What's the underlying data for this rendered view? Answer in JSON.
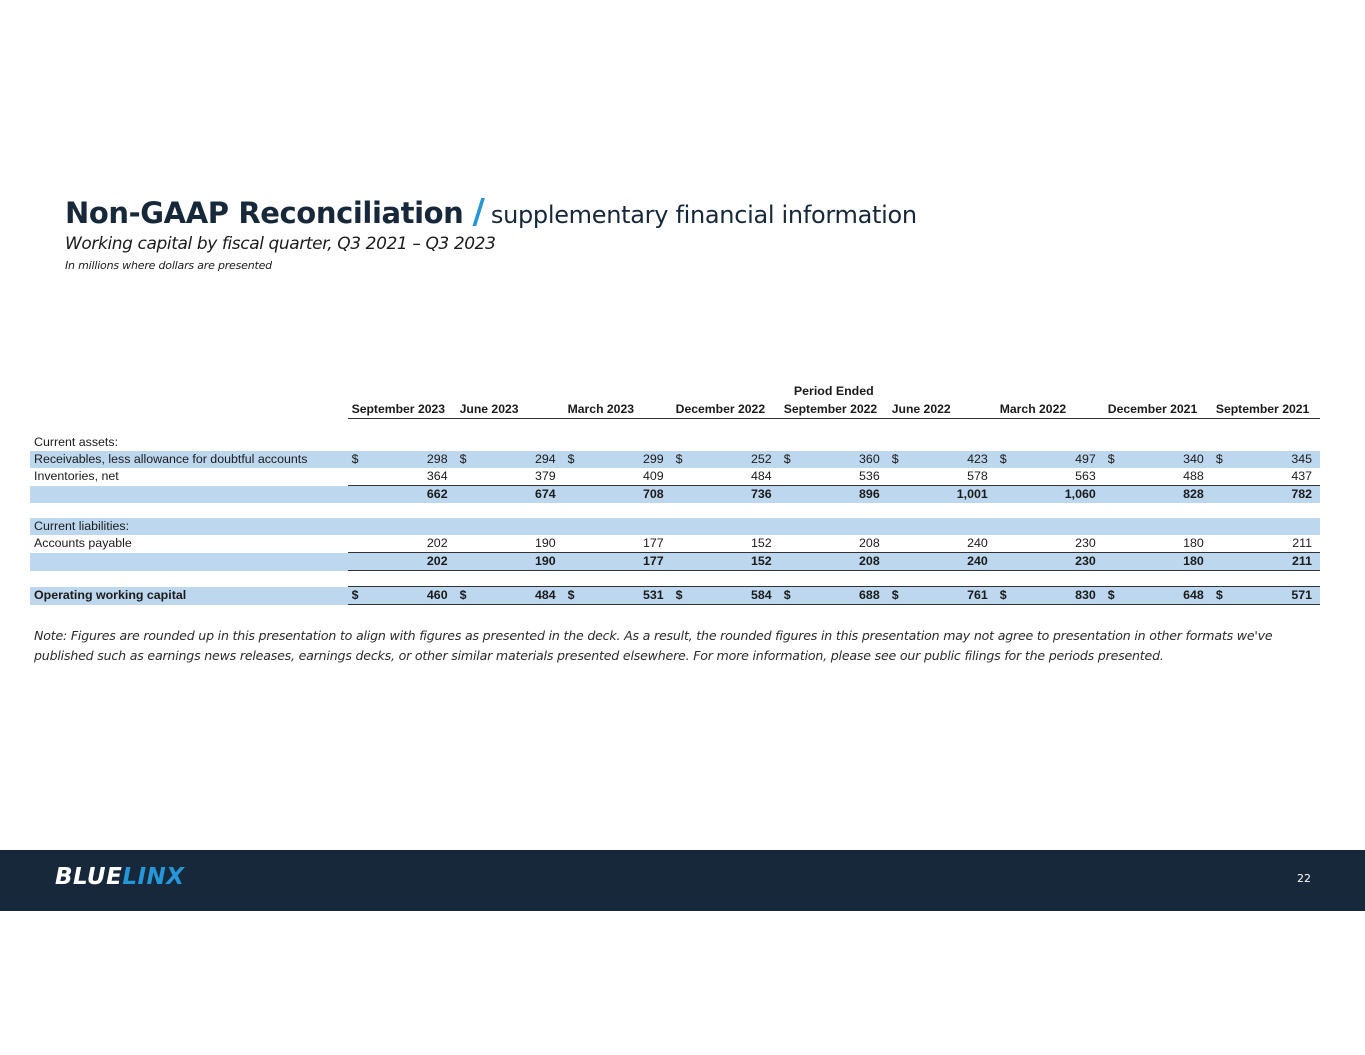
{
  "header": {
    "title": "Non-GAAP Reconciliation",
    "slash": "/",
    "title_sub": "supplementary financial information",
    "subtitle": "Working capital by fiscal quarter, Q3 2021 – Q3 2023",
    "units_note": "In millions where dollars are presented"
  },
  "table": {
    "period_header": "Period Ended",
    "currency": "$",
    "columns": [
      "September 2023",
      "June 2023",
      "March 2023",
      "December 2022",
      "September 2022",
      "June 2022",
      "March 2022",
      "December 2021",
      "September 2021"
    ],
    "current_assets_label": "Current assets:",
    "receivables": {
      "label": "Receivables, less allowance for doubtful accounts",
      "values": [
        "298",
        "294",
        "299",
        "252",
        "360",
        "423",
        "497",
        "340",
        "345"
      ]
    },
    "inventories": {
      "label": "Inventories, net",
      "values": [
        "364",
        "379",
        "409",
        "484",
        "536",
        "578",
        "563",
        "488",
        "437"
      ]
    },
    "assets_total": {
      "values": [
        "662",
        "674",
        "708",
        "736",
        "896",
        "1,001",
        "1,060",
        "828",
        "782"
      ]
    },
    "current_liabilities_label": "Current liabilities:",
    "accounts_payable": {
      "label": "Accounts payable",
      "values": [
        "202",
        "190",
        "177",
        "152",
        "208",
        "240",
        "230",
        "180",
        "211"
      ]
    },
    "liabilities_total": {
      "values": [
        "202",
        "190",
        "177",
        "152",
        "208",
        "240",
        "230",
        "180",
        "211"
      ]
    },
    "owc": {
      "label": "Operating working capital",
      "values": [
        "460",
        "484",
        "531",
        "584",
        "688",
        "761",
        "830",
        "648",
        "571"
      ]
    }
  },
  "note": "Note: Figures are rounded up in this presentation to align with figures as presented in the deck. As a result, the rounded figures in this presentation may not agree to presentation in other formats we've published such as earnings news releases, earnings decks, or other similar materials presented elsewhere.  For more information, please see our public filings for the periods presented.",
  "footer": {
    "logo_part1": "BLUE",
    "logo_part2": "LINX",
    "page_number": "22"
  }
}
